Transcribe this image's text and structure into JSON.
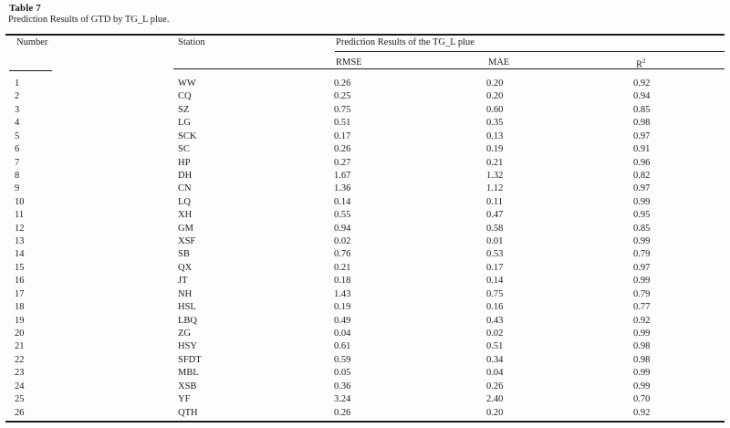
{
  "table": {
    "label": "Table 7",
    "caption": "Prediction Results of GTD by TG_L plue.",
    "columns": {
      "number": "Number",
      "station": "Station",
      "group": "Prediction Results of the TG_L plue",
      "rmse": "RMSE",
      "mae": "MAE",
      "r2_base": "R",
      "r2_sup": "2"
    },
    "rows": [
      {
        "number": "1",
        "station": "WW",
        "rmse": "0.26",
        "mae": "0.20",
        "r2": "0.92"
      },
      {
        "number": "2",
        "station": "CQ",
        "rmse": "0.25",
        "mae": "0.20",
        "r2": "0.94"
      },
      {
        "number": "3",
        "station": "SZ",
        "rmse": "0.75",
        "mae": "0.60",
        "r2": "0.85"
      },
      {
        "number": "4",
        "station": "LG",
        "rmse": "0.51",
        "mae": "0.35",
        "r2": "0.98"
      },
      {
        "number": "5",
        "station": "SCK",
        "rmse": "0.17",
        "mae": "0.13",
        "r2": "0.97"
      },
      {
        "number": "6",
        "station": "SC",
        "rmse": "0.26",
        "mae": "0.19",
        "r2": "0.91"
      },
      {
        "number": "7",
        "station": "HP",
        "rmse": "0.27",
        "mae": "0.21",
        "r2": "0.96"
      },
      {
        "number": "8",
        "station": "DH",
        "rmse": "1.67",
        "mae": "1.32",
        "r2": "0.82"
      },
      {
        "number": "9",
        "station": "CN",
        "rmse": "1.36",
        "mae": "1.12",
        "r2": "0.97"
      },
      {
        "number": "10",
        "station": "LQ",
        "rmse": "0.14",
        "mae": "0.11",
        "r2": "0.99"
      },
      {
        "number": "11",
        "station": "XH",
        "rmse": "0.55",
        "mae": "0.47",
        "r2": "0.95"
      },
      {
        "number": "12",
        "station": "GM",
        "rmse": "0.94",
        "mae": "0.58",
        "r2": "0.85"
      },
      {
        "number": "13",
        "station": "XSF",
        "rmse": "0.02",
        "mae": "0.01",
        "r2": "0.99"
      },
      {
        "number": "14",
        "station": "SB",
        "rmse": "0.76",
        "mae": "0.53",
        "r2": "0.79"
      },
      {
        "number": "15",
        "station": "QX",
        "rmse": "0.21",
        "mae": "0.17",
        "r2": "0.97"
      },
      {
        "number": "16",
        "station": "JT",
        "rmse": "0.18",
        "mae": "0.14",
        "r2": "0.99"
      },
      {
        "number": "17",
        "station": "NH",
        "rmse": "1.43",
        "mae": "0.75",
        "r2": "0.79"
      },
      {
        "number": "18",
        "station": "HSL",
        "rmse": "0.19",
        "mae": "0.16",
        "r2": "0.77"
      },
      {
        "number": "19",
        "station": "LBQ",
        "rmse": "0.49",
        "mae": "0.43",
        "r2": "0.92"
      },
      {
        "number": "20",
        "station": "ZG",
        "rmse": "0.04",
        "mae": "0.02",
        "r2": "0.99"
      },
      {
        "number": "21",
        "station": "HSY",
        "rmse": "0.61",
        "mae": "0.51",
        "r2": "0.98"
      },
      {
        "number": "22",
        "station": "SFDT",
        "rmse": "0.59",
        "mae": "0.34",
        "r2": "0.98"
      },
      {
        "number": "23",
        "station": "MBL",
        "rmse": "0.05",
        "mae": "0.04",
        "r2": "0.99"
      },
      {
        "number": "24",
        "station": "XSB",
        "rmse": "0.36",
        "mae": "0.26",
        "r2": "0.99"
      },
      {
        "number": "25",
        "station": "YF",
        "rmse": "3.24",
        "mae": "2.40",
        "r2": "0.70"
      },
      {
        "number": "26",
        "station": "QTH",
        "rmse": "0.26",
        "mae": "0.20",
        "r2": "0.92"
      }
    ]
  }
}
